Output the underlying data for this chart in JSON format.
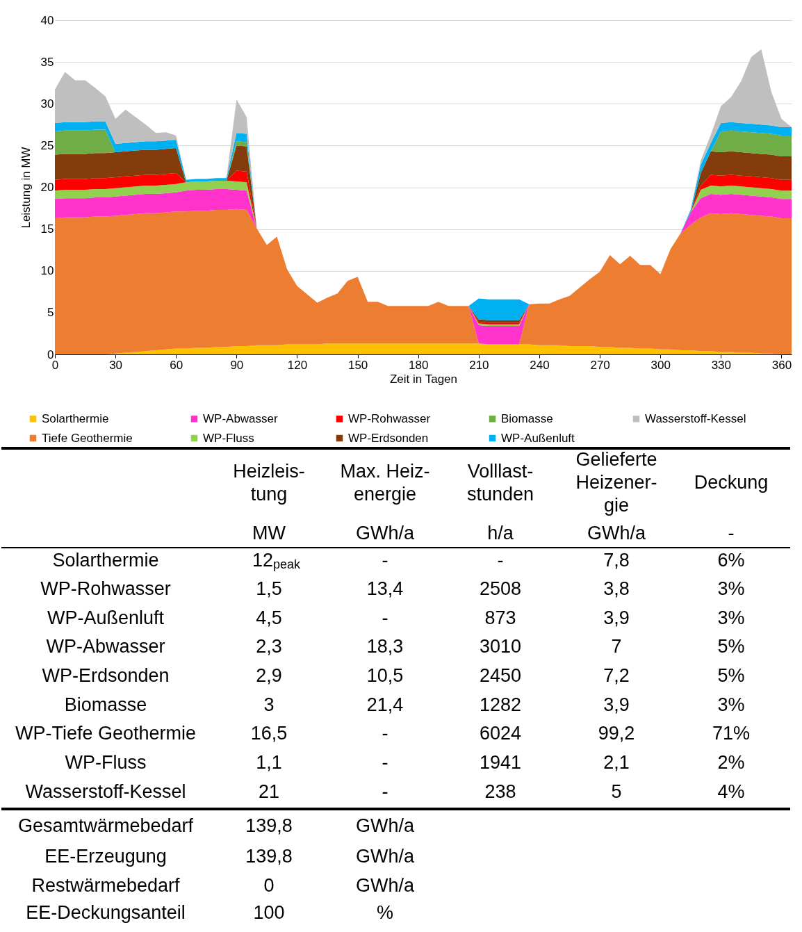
{
  "chart_data": [
    {
      "type": "area",
      "xlabel": "Zeit in Tagen",
      "ylabel": "Leistung in MW",
      "x": [
        0,
        5,
        10,
        15,
        20,
        25,
        30,
        35,
        40,
        45,
        50,
        55,
        60,
        65,
        70,
        75,
        80,
        85,
        90,
        95,
        100,
        105,
        110,
        115,
        120,
        125,
        130,
        135,
        140,
        145,
        150,
        155,
        160,
        165,
        170,
        175,
        180,
        185,
        190,
        195,
        200,
        205,
        210,
        215,
        220,
        225,
        230,
        235,
        240,
        245,
        250,
        255,
        260,
        265,
        270,
        275,
        280,
        285,
        290,
        295,
        300,
        305,
        310,
        315,
        320,
        325,
        330,
        335,
        340,
        345,
        350,
        355,
        360,
        365
      ],
      "series": [
        {
          "name": "Solarthermie",
          "color": "#ffc000",
          "values": [
            0,
            0,
            0,
            0,
            0,
            0,
            0.1,
            0.2,
            0.3,
            0.4,
            0.5,
            0.6,
            0.7,
            0.7,
            0.8,
            0.8,
            0.9,
            0.9,
            1.0,
            1.0,
            1.1,
            1.1,
            1.1,
            1.2,
            1.2,
            1.2,
            1.2,
            1.3,
            1.3,
            1.3,
            1.3,
            1.3,
            1.3,
            1.3,
            1.3,
            1.3,
            1.3,
            1.3,
            1.3,
            1.3,
            1.3,
            1.3,
            1.3,
            1.2,
            1.2,
            1.2,
            1.2,
            1.2,
            1.1,
            1.1,
            1.1,
            1.0,
            1.0,
            1.0,
            0.9,
            0.9,
            0.8,
            0.8,
            0.7,
            0.7,
            0.6,
            0.6,
            0.5,
            0.5,
            0.4,
            0.4,
            0.3,
            0.3,
            0.2,
            0.2,
            0.1,
            0.1,
            0,
            0
          ]
        },
        {
          "name": "Tiefe Geothermie",
          "color": "#ed7d31",
          "values": [
            16.3,
            16.4,
            16.4,
            16.4,
            16.5,
            16.5,
            16.5,
            16.5,
            16.5,
            16.5,
            16.4,
            16.4,
            16.4,
            16.4,
            16.4,
            16.4,
            16.4,
            16.4,
            16.4,
            16.3,
            14,
            12,
            13,
            9,
            7,
            6,
            5,
            5.5,
            6,
            7.5,
            8,
            5,
            5,
            4.5,
            4.5,
            4.5,
            4.5,
            4.5,
            5,
            4.5,
            4.5,
            4.5,
            0,
            0,
            0,
            0,
            0,
            4.8,
            5,
            5,
            5.5,
            6,
            7,
            8,
            9,
            11,
            10,
            11,
            10,
            10,
            9,
            12,
            14,
            15,
            16,
            16.5,
            16.5,
            16.6,
            16.6,
            16.5,
            16.5,
            16.4,
            16.3,
            16.3
          ]
        },
        {
          "name": "WP-Abwasser",
          "color": "#ff33cc",
          "values": [
            2.3,
            2.3,
            2.3,
            2.3,
            2.3,
            2.3,
            2.3,
            2.3,
            2.3,
            2.3,
            2.3,
            2.3,
            2.3,
            2.5,
            2.5,
            2.5,
            2.5,
            2.5,
            2.3,
            2.3,
            0,
            0,
            0,
            0,
            0,
            0,
            0,
            0,
            0,
            0,
            0,
            0,
            0,
            0,
            0,
            0,
            0,
            0,
            0,
            0,
            0,
            0,
            2.2,
            2.2,
            2.2,
            2.2,
            2.2,
            0,
            0,
            0,
            0,
            0,
            0,
            0,
            0,
            0,
            0,
            0,
            0,
            0,
            0,
            0,
            0,
            1.5,
            2.3,
            2.3,
            2.3,
            2.3,
            2.3,
            2.3,
            2.3,
            2.3,
            2.3,
            2.3
          ]
        },
        {
          "name": "WP-Fluss",
          "color": "#92d050",
          "values": [
            1,
            1,
            1,
            1,
            1,
            1,
            1,
            1,
            1,
            1,
            1,
            1,
            1,
            1,
            1,
            1,
            1,
            1,
            1,
            1,
            0,
            0,
            0,
            0,
            0,
            0,
            0,
            0,
            0,
            0,
            0,
            0,
            0,
            0,
            0,
            0,
            0,
            0,
            0,
            0,
            0,
            0,
            0.2,
            0.2,
            0.2,
            0.2,
            0.2,
            0,
            0,
            0,
            0,
            0,
            0,
            0,
            0,
            0,
            0,
            0,
            0,
            0,
            0,
            0,
            0,
            0,
            1,
            1,
            1,
            1,
            1,
            1,
            1,
            1,
            1,
            1
          ]
        },
        {
          "name": "WP-Rohwasser",
          "color": "#ff0000",
          "values": [
            1.3,
            1.3,
            1.3,
            1.3,
            1.3,
            1.3,
            1.3,
            1.3,
            1.3,
            1.3,
            1.3,
            1.3,
            1.3,
            0,
            0,
            0,
            0,
            0,
            1.3,
            1.3,
            0,
            0,
            0,
            0,
            0,
            0,
            0,
            0,
            0,
            0,
            0,
            0,
            0,
            0,
            0,
            0,
            0,
            0,
            0,
            0,
            0,
            0,
            0.2,
            0.2,
            0.2,
            0.2,
            0.2,
            0,
            0,
            0,
            0,
            0,
            0,
            0,
            0,
            0,
            0,
            0,
            0,
            0,
            0,
            0,
            0,
            0,
            0.5,
            1.3,
            1.3,
            1.3,
            1.3,
            1.3,
            1.3,
            1.3,
            1.3,
            1.3
          ]
        },
        {
          "name": "WP-Erdsonden",
          "color": "#843c0c",
          "values": [
            3,
            3,
            3,
            3,
            3,
            3,
            3,
            3,
            3,
            3,
            3,
            3,
            3,
            0,
            0,
            0,
            0,
            0,
            3,
            3,
            0,
            0,
            0,
            0,
            0,
            0,
            0,
            0,
            0,
            0,
            0,
            0,
            0,
            0,
            0,
            0,
            0,
            0,
            0,
            0,
            0,
            0,
            0.3,
            0.3,
            0.3,
            0.3,
            0.3,
            0,
            0,
            0,
            0,
            0,
            0,
            0,
            0,
            0,
            0,
            0,
            0,
            0,
            0,
            0,
            0,
            0,
            1.5,
            2.8,
            2.8,
            2.8,
            2.8,
            2.8,
            2.8,
            2.8,
            2.8,
            2.8
          ]
        },
        {
          "name": "Biomasse",
          "color": "#70ad47",
          "values": [
            2.8,
            2.8,
            2.8,
            2.8,
            2.8,
            2.8,
            0,
            0,
            0,
            0,
            0,
            0,
            0,
            0,
            0,
            0,
            0,
            0,
            0.5,
            0.5,
            0,
            0,
            0,
            0,
            0,
            0,
            0,
            0,
            0,
            0,
            0,
            0,
            0,
            0,
            0,
            0,
            0,
            0,
            0,
            0,
            0,
            0,
            0,
            0,
            0,
            0,
            0,
            0,
            0,
            0,
            0,
            0,
            0,
            0,
            0,
            0,
            0,
            0,
            0,
            0,
            0,
            0,
            0,
            0,
            0,
            0,
            2.5,
            2.5,
            2.5,
            2.5,
            2.5,
            2.5,
            2.5,
            2.5
          ]
        },
        {
          "name": "WP-Außenluft",
          "color": "#00b0f0",
          "values": [
            1,
            1,
            1,
            1,
            1,
            1,
            1,
            1,
            1,
            1,
            1,
            1,
            1,
            0.3,
            0.3,
            0.3,
            0.3,
            0.3,
            1,
            1,
            0,
            0,
            0,
            0,
            0,
            0,
            0,
            0,
            0,
            0,
            0,
            0,
            0,
            0,
            0,
            0,
            0,
            0,
            0,
            0,
            0,
            0,
            2.5,
            2.5,
            2.5,
            2.5,
            2.5,
            0,
            0,
            0,
            0,
            0,
            0,
            0,
            0,
            0,
            0,
            0,
            0,
            0,
            0,
            0,
            0,
            0.3,
            1,
            1,
            1,
            1,
            1,
            1,
            1,
            1,
            1,
            1
          ]
        },
        {
          "name": "Wasserstoff-Kessel",
          "color": "#bfbfbf",
          "values": [
            4,
            6,
            5,
            5,
            4,
            3,
            3,
            4,
            3,
            2,
            1,
            1,
            0.5,
            0,
            0,
            0,
            0,
            0,
            4,
            2,
            0,
            0,
            0,
            0,
            0,
            0,
            0,
            0,
            0,
            0,
            0,
            0,
            0,
            0,
            0,
            0,
            0,
            0,
            0,
            0,
            0,
            0,
            0,
            0,
            0,
            0,
            0,
            0,
            0,
            0,
            0,
            0,
            0,
            0,
            0,
            0,
            0,
            0,
            0,
            0,
            0,
            0,
            0,
            0,
            0.5,
            1,
            2,
            3,
            5,
            8,
            9,
            4,
            1,
            0
          ]
        }
      ],
      "xlim": [
        0,
        365
      ],
      "xticks": [
        0,
        30,
        60,
        90,
        120,
        150,
        180,
        210,
        240,
        270,
        300,
        330,
        360
      ],
      "ylim": [
        0,
        40
      ],
      "yticks": [
        0,
        5,
        10,
        15,
        20,
        25,
        30,
        35,
        40
      ],
      "stacked": true,
      "grid": "y",
      "legend": "bottom"
    },
    {
      "type": "other",
      "annotations": [
        null,
        "Heizleis-\ntung",
        "Max. Heiz-\nenergie",
        "Volllast-\nstunden",
        "Gelieferte\nHeizener-\ngie",
        "Deckung",
        null,
        "MW",
        "GWh/a",
        "h/a",
        "GWh/a",
        "-",
        "Solarthermie",
        "12$_{peak}$",
        "-",
        "-",
        "7,8",
        "6%",
        "WP-Rohwasser",
        "1,5",
        "13,4",
        "2508",
        "3,8",
        "3%",
        "WP-Außenluft",
        "4,5",
        "-",
        "873",
        "3,9",
        "3%",
        "WP-Abwasser",
        "2,3",
        "18,3",
        "3010",
        "7",
        "5%",
        "WP-Erdsonden",
        "2,9",
        "10,5",
        "2450",
        "7,2",
        "5%",
        "Biomasse",
        "3",
        "21,4",
        "1282",
        "3,9",
        "3%",
        "WP-Tiefe Geothermie",
        "16,5",
        "-",
        "6024",
        "99,2",
        "71%",
        "WP-Fluss",
        "1,1",
        "-",
        "1941",
        "2,1",
        "2%",
        "Wasserstoff-Kessel",
        "21",
        "-",
        "238",
        "5",
        "4%"
      ]
    },
    {
      "type": "other",
      "annotations": [
        "Gesamtwärmebedarf",
        "139,8",
        "GWh/a",
        "EE-Erzeugung",
        "139,8",
        "GWh/a",
        "Restwärmebedarf",
        "0",
        "GWh/a",
        "EE-Deckungsanteil",
        "100",
        "%"
      ]
    }
  ]
}
